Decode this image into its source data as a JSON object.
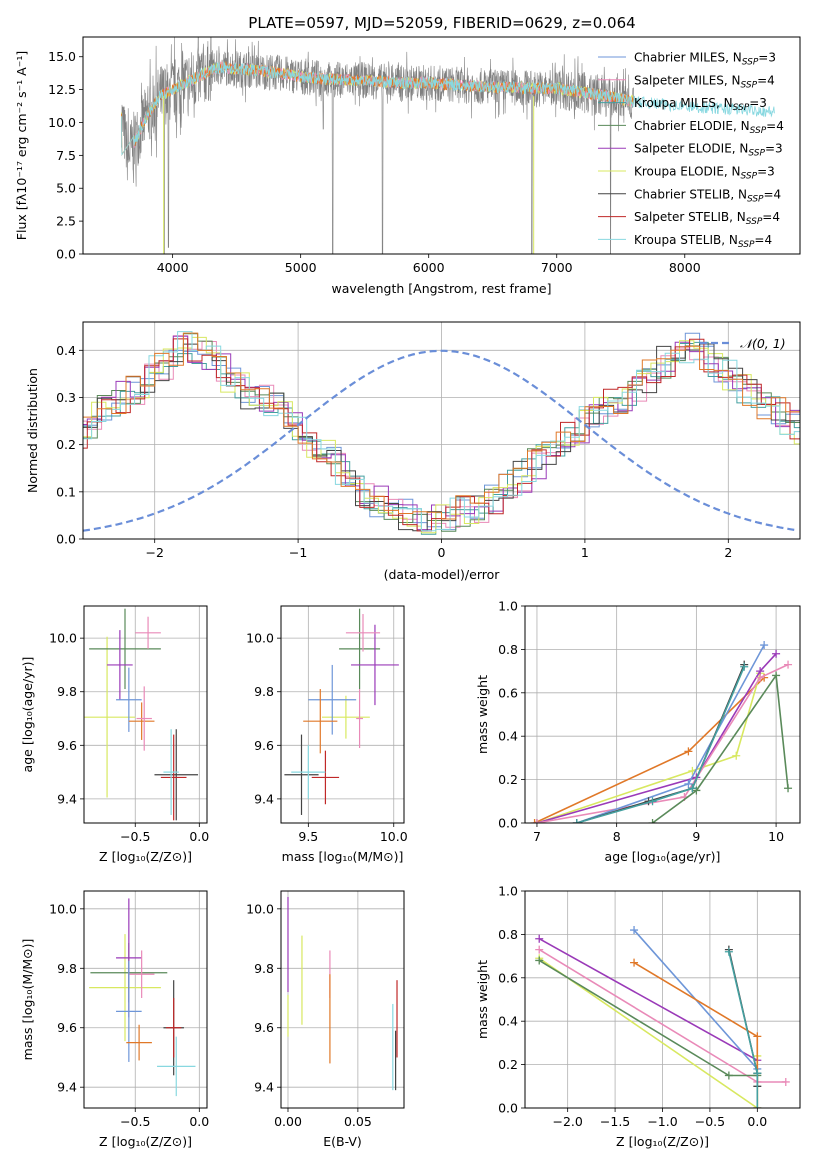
{
  "figure_title": "PLATE=0597, MJD=52059, FIBERID=0629, z=0.064",
  "colors": {
    "Chabrier MILES": "#6e96d8",
    "Salpeter MILES": "#e98ab8",
    "Kroupa MILES": "#44a0a0",
    "Chabrier ELODIE": "#5a8a5a",
    "Salpeter ELODIE": "#9a3ab8",
    "Kroupa ELODIE": "#d8e860",
    "Chabrier STELIB": "#444444",
    "Salpeter STELIB": "#c02828",
    "Kroupa STELIB": "#88d8e0",
    "orange": "#e07828",
    "data": "#808080",
    "model": "#78d8d8",
    "normal": "#6a8ed8"
  },
  "chart_data": [
    {
      "id": "spectrum",
      "type": "line",
      "title": "PLATE=0597, MJD=52059, FIBERID=0629, z=0.064",
      "xlabel": "wavelength [Angstrom, rest frame]",
      "ylabel": "Flux [fλ10⁻¹⁷ erg cm⁻² s⁻¹ A⁻¹]",
      "xlim": [
        3300,
        8900
      ],
      "ylim": [
        0,
        16.5
      ],
      "xticks": [
        "4000",
        "5000",
        "6000",
        "7000",
        "8000"
      ],
      "yticks": [
        "0.0",
        "2.5",
        "5.0",
        "7.5",
        "10.0",
        "12.5",
        "15.0"
      ],
      "grid": false,
      "legend_position": "top-right",
      "legend": [
        "Chabrier MILES, N_SSP=3",
        "Salpeter MILES, N_SSP=4",
        "Kroupa MILES, N_SSP=3",
        "Chabrier ELODIE, N_SSP=4",
        "Salpeter ELODIE, N_SSP=3",
        "Kroupa ELODIE, N_SSP=3",
        "Chabrier STELIB, N_SSP=4",
        "Salpeter STELIB, N_SSP=4",
        "Kroupa STELIB, N_SSP=4"
      ],
      "envelope": {
        "x": [
          3600,
          3650,
          3700,
          3800,
          3900,
          4000,
          4100,
          4200,
          4300,
          4400,
          4600,
          4800,
          5000,
          5200,
          5500,
          5800,
          6000,
          6300,
          6500,
          6800,
          7000,
          7200,
          7400,
          7600,
          7800,
          8000,
          8200,
          8400,
          8600,
          8700
        ],
        "y": [
          10.5,
          7.5,
          8.5,
          10.5,
          12.0,
          12.5,
          13.0,
          13.5,
          14.0,
          14.2,
          14.0,
          13.8,
          13.5,
          13.3,
          13.2,
          13.0,
          13.0,
          12.8,
          12.7,
          12.6,
          12.6,
          12.3,
          12.0,
          11.6,
          11.4,
          11.2,
          11.1,
          11.0,
          10.9,
          10.8
        ]
      },
      "absorption_lines": [
        {
          "x": 3934,
          "depth": 0.0
        },
        {
          "x": 3968,
          "depth": 0.5
        },
        {
          "x": 5176,
          "depth": 9.5
        },
        {
          "x": 5250,
          "depth": 0.0
        },
        {
          "x": 5640,
          "depth": 0.0
        },
        {
          "x": 6805,
          "depth": 0.0
        },
        {
          "x": 7420,
          "depth": 0.0
        }
      ]
    },
    {
      "id": "residuals",
      "type": "bar",
      "xlabel": "(data-model)/error",
      "ylabel": "Normed distribution",
      "xlim": [
        -2.5,
        2.5
      ],
      "ylim": [
        0,
        0.46
      ],
      "xticks": [
        "−2",
        "−1",
        "0",
        "1",
        "2"
      ],
      "yticks": [
        "0.0",
        "0.1",
        "0.2",
        "0.3",
        "0.4"
      ],
      "grid": true,
      "legend_position": "top-right",
      "legend": [
        "𝒩(0, 1)"
      ],
      "bin_width": 0.1,
      "base": [
        0.03,
        0.035,
        0.04,
        0.045,
        0.05,
        0.055,
        0.06,
        0.07,
        0.08,
        0.09,
        0.1,
        0.115,
        0.13,
        0.145,
        0.16,
        0.175,
        0.19,
        0.205,
        0.22,
        0.235,
        0.25,
        0.265,
        0.28,
        0.29,
        0.295,
        0.3,
        0.31,
        0.32,
        0.33,
        0.345,
        0.36,
        0.375,
        0.39,
        0.4,
        0.405,
        0.41,
        0.4,
        0.385,
        0.37,
        0.36,
        0.345,
        0.33,
        0.32,
        0.31,
        0.3,
        0.29,
        0.28,
        0.27,
        0.255,
        0.24,
        0.225,
        0.21,
        0.195,
        0.18,
        0.165,
        0.15,
        0.135,
        0.12,
        0.105,
        0.09,
        0.078,
        0.068,
        0.06,
        0.052,
        0.045,
        0.04,
        0.035,
        0.03,
        0.028,
        0.025,
        0.022,
        0.02,
        0.018,
        0.016,
        0.015,
        0.014,
        0.013,
        0.012,
        0.011,
        0.01,
        0.009,
        0.009,
        0.008,
        0.008,
        0.008,
        0.007,
        0.007,
        0.007,
        0.006,
        0.006,
        0.006,
        0.006,
        0.005,
        0.005,
        0.005,
        0.005,
        0.005,
        0.005,
        0.005,
        0.005
      ]
    },
    {
      "id": "age-vs-Z",
      "type": "scatter",
      "xlabel": "Z [log₁₀(Z/Z⊙)]",
      "ylabel": "age  [log₁₀(age/yr)]",
      "xlim": [
        -0.9,
        0.06
      ],
      "ylim": [
        9.31,
        10.12
      ],
      "xticks": [
        "−0.5",
        "0.0"
      ],
      "yticks": [
        "9.4",
        "9.6",
        "9.8",
        "10.0"
      ],
      "grid": true,
      "points": [
        {
          "model": "Kroupa ELODIE",
          "x": -0.72,
          "y": 9.705,
          "xerr": 0.22,
          "yerr": 0.3
        },
        {
          "model": "Chabrier ELODIE",
          "x": -0.58,
          "y": 9.96,
          "xerr": 0.28,
          "yerr": 0.15
        },
        {
          "model": "Salpeter ELODIE",
          "x": -0.62,
          "y": 9.9,
          "xerr": 0.1,
          "yerr": 0.13
        },
        {
          "model": "Chabrier MILES",
          "x": -0.55,
          "y": 9.77,
          "xerr": 0.1,
          "yerr": 0.12
        },
        {
          "model": "Salpeter MILES",
          "x": -0.4,
          "y": 10.02,
          "xerr": 0.1,
          "yerr": 0.06
        },
        {
          "model": "orange",
          "x": -0.45,
          "y": 9.69,
          "xerr": 0.1,
          "yerr": 0.07
        },
        {
          "model": "Salpeter MILES",
          "x": -0.43,
          "y": 9.7,
          "xerr": 0.06,
          "yerr": 0.12
        },
        {
          "model": "Chabrier STELIB",
          "x": -0.18,
          "y": 9.49,
          "xerr": 0.17,
          "yerr": 0.17
        },
        {
          "model": "Salpeter STELIB",
          "x": -0.2,
          "y": 9.48,
          "xerr": 0.1,
          "yerr": 0.16
        },
        {
          "model": "Kroupa STELIB",
          "x": -0.22,
          "y": 9.5,
          "xerr": 0.06,
          "yerr": 0.16
        }
      ]
    },
    {
      "id": "age-vs-mass",
      "type": "scatter",
      "xlabel": "mass [log₁₀(M/M⊙)]",
      "ylabel": "",
      "xlim": [
        9.34,
        10.06
      ],
      "ylim": [
        9.31,
        10.12
      ],
      "xticks": [
        "9.5",
        "10.0"
      ],
      "yticks": [
        "9.4",
        "9.6",
        "9.8",
        "10.0"
      ],
      "grid": true,
      "points": [
        {
          "model": "Kroupa ELODIE",
          "x": 9.72,
          "y": 9.705,
          "xerr": 0.14,
          "yerr": 0.08
        },
        {
          "model": "Chabrier ELODIE",
          "x": 9.8,
          "y": 9.96,
          "xerr": 0.12,
          "yerr": 0.15
        },
        {
          "model": "Salpeter ELODIE",
          "x": 9.89,
          "y": 9.9,
          "xerr": 0.14,
          "yerr": 0.15
        },
        {
          "model": "Chabrier MILES",
          "x": 9.64,
          "y": 9.77,
          "xerr": 0.14,
          "yerr": 0.13
        },
        {
          "model": "Salpeter MILES",
          "x": 9.82,
          "y": 10.02,
          "xerr": 0.1,
          "yerr": 0.07
        },
        {
          "model": "orange",
          "x": 9.57,
          "y": 9.69,
          "xerr": 0.1,
          "yerr": 0.12
        },
        {
          "model": "Salpeter MILES",
          "x": 9.8,
          "y": 9.7,
          "xerr": 0.02,
          "yerr": 0.11
        },
        {
          "model": "Chabrier STELIB",
          "x": 9.46,
          "y": 9.49,
          "xerr": 0.1,
          "yerr": 0.15
        },
        {
          "model": "Salpeter STELIB",
          "x": 9.6,
          "y": 9.48,
          "xerr": 0.08,
          "yerr": 0.1
        },
        {
          "model": "Kroupa STELIB",
          "x": 9.5,
          "y": 9.5,
          "xerr": 0.1,
          "yerr": 0.1
        }
      ]
    },
    {
      "id": "weight-vs-age",
      "type": "line",
      "xlabel": "age  [log₁₀(age/yr)]",
      "ylabel": "mass weight",
      "xlim": [
        6.85,
        10.3
      ],
      "ylim": [
        0,
        1.0
      ],
      "xticks": [
        "7",
        "8",
        "9",
        "10"
      ],
      "yticks": [
        "0.0",
        "0.2",
        "0.4",
        "0.6",
        "0.8",
        "1.0"
      ],
      "grid": true,
      "series": [
        {
          "model": "orange",
          "x": [
            6.97,
            8.9,
            9.85
          ],
          "y": [
            0.0,
            0.33,
            0.67
          ]
        },
        {
          "model": "Kroupa ELODIE",
          "x": [
            7.0,
            8.95,
            9.5,
            9.8
          ],
          "y": [
            0.0,
            0.24,
            0.31,
            0.69
          ]
        },
        {
          "model": "Salpeter ELODIE",
          "x": [
            7.0,
            9.0,
            9.8,
            10.0
          ],
          "y": [
            0.0,
            0.21,
            0.7,
            0.78
          ]
        },
        {
          "model": "Salpeter MILES",
          "x": [
            7.0,
            8.85,
            9.8,
            10.15
          ],
          "y": [
            0.0,
            0.12,
            0.67,
            0.73
          ]
        },
        {
          "model": "Chabrier MILES",
          "x": [
            7.5,
            8.9,
            9.85
          ],
          "y": [
            0.0,
            0.18,
            0.82
          ]
        },
        {
          "model": "Chabrier STELIB",
          "x": [
            7.5,
            8.4,
            8.95,
            9.6
          ],
          "y": [
            0.0,
            0.1,
            0.16,
            0.73
          ]
        },
        {
          "model": "Chabrier ELODIE",
          "x": [
            8.45,
            9.0,
            10.0,
            10.15
          ],
          "y": [
            0.0,
            0.15,
            0.68,
            0.16
          ]
        },
        {
          "model": "Kroupa MILES",
          "x": [
            7.5,
            8.45,
            8.95,
            9.6
          ],
          "y": [
            0.0,
            0.1,
            0.16,
            0.72
          ]
        }
      ]
    },
    {
      "id": "mass-vs-Z",
      "type": "scatter",
      "xlabel": "Z [log₁₀(Z/Z⊙)]",
      "ylabel": "mass [log₁₀(M/M⊙)]",
      "xlim": [
        -0.9,
        0.06
      ],
      "ylim": [
        9.33,
        10.06
      ],
      "xticks": [
        "−0.5",
        "0.0"
      ],
      "yticks": [
        "9.4",
        "9.6",
        "9.8",
        "10.0"
      ],
      "grid": true,
      "points": [
        {
          "model": "Kroupa ELODIE",
          "x": -0.58,
          "y": 9.735,
          "xerr": 0.28,
          "yerr": 0.18
        },
        {
          "model": "Chabrier ELODIE",
          "x": -0.55,
          "y": 9.785,
          "xerr": 0.3,
          "yerr": 0.1
        },
        {
          "model": "Salpeter ELODIE",
          "x": -0.55,
          "y": 9.835,
          "xerr": 0.1,
          "yerr": 0.2
        },
        {
          "model": "Salpeter MILES",
          "x": -0.45,
          "y": 9.78,
          "xerr": 0.1,
          "yerr": 0.08
        },
        {
          "model": "Chabrier MILES",
          "x": -0.55,
          "y": 9.655,
          "xerr": 0.1,
          "yerr": 0.17
        },
        {
          "model": "orange",
          "x": -0.47,
          "y": 9.55,
          "xerr": 0.1,
          "yerr": 0.06
        },
        {
          "model": "Chabrier STELIB",
          "x": -0.2,
          "y": 9.6,
          "xerr": 0.08,
          "yerr": 0.16
        },
        {
          "model": "Salpeter STELIB",
          "x": -0.2,
          "y": 9.6,
          "xerr": 0.06,
          "yerr": 0.1
        },
        {
          "model": "Kroupa STELIB",
          "x": -0.18,
          "y": 9.47,
          "xerr": 0.15,
          "yerr": 0.1
        }
      ]
    },
    {
      "id": "mass-vs-ebv",
      "type": "scatter",
      "xlabel": "E(B-V)",
      "ylabel": "",
      "xlim": [
        -0.005,
        0.083
      ],
      "ylim": [
        9.33,
        10.06
      ],
      "xticks": [
        "0.00",
        "0.05"
      ],
      "yticks": [
        "9.4",
        "9.6",
        "9.8",
        "10.0"
      ],
      "grid": true,
      "points": [
        {
          "model": "Salpeter ELODIE",
          "x": 0.0,
          "y": 9.88,
          "xerr": 0,
          "yerr": 0.16
        },
        {
          "model": "Kroupa ELODIE",
          "x": 0.0,
          "y": 9.64,
          "xerr": 0,
          "yerr": 0.07
        },
        {
          "model": "Kroupa ELODIE",
          "x": 0.01,
          "y": 9.76,
          "xerr": 0,
          "yerr": 0.15
        },
        {
          "model": "Salpeter MILES",
          "x": 0.03,
          "y": 9.78,
          "xerr": 0,
          "yerr": 0.08
        },
        {
          "model": "orange",
          "x": 0.03,
          "y": 9.63,
          "xerr": 0,
          "yerr": 0.15
        },
        {
          "model": "Kroupa STELIB",
          "x": 0.075,
          "y": 9.535,
          "xerr": 0,
          "yerr": 0.145
        },
        {
          "model": "Chabrier STELIB",
          "x": 0.077,
          "y": 9.49,
          "xerr": 0,
          "yerr": 0.1
        },
        {
          "model": "Salpeter STELIB",
          "x": 0.078,
          "y": 9.63,
          "xerr": 0,
          "yerr": 0.13
        }
      ]
    },
    {
      "id": "weight-vs-Z",
      "type": "line",
      "xlabel": "Z [log₁₀(Z/Z⊙)]",
      "ylabel": "mass weight",
      "xlim": [
        -2.45,
        0.45
      ],
      "ylim": [
        0,
        1.0
      ],
      "xticks": [
        "−2.0",
        "−1.5",
        "−1.0",
        "−0.5",
        "0.0"
      ],
      "yticks": [
        "0.0",
        "0.2",
        "0.4",
        "0.6",
        "0.8",
        "1.0"
      ],
      "grid": true,
      "series": [
        {
          "model": "Salpeter ELODIE",
          "x": [
            -2.3,
            0.0
          ],
          "y": [
            0.78,
            0.22
          ]
        },
        {
          "model": "Salpeter MILES",
          "x": [
            -2.3,
            0.0,
            0.3
          ],
          "y": [
            0.73,
            0.12,
            0.12
          ]
        },
        {
          "model": "Kroupa ELODIE",
          "x": [
            -2.3,
            0.0,
            0.0
          ],
          "y": [
            0.69,
            0.0,
            0.24
          ]
        },
        {
          "model": "Chabrier ELODIE",
          "x": [
            -2.3,
            -0.3,
            0.0
          ],
          "y": [
            0.68,
            0.15,
            0.15
          ]
        },
        {
          "model": "Chabrier MILES",
          "x": [
            -1.3,
            0.0
          ],
          "y": [
            0.82,
            0.18
          ]
        },
        {
          "model": "orange",
          "x": [
            -1.3,
            0.0,
            0.0
          ],
          "y": [
            0.67,
            0.33,
            0.0
          ]
        },
        {
          "model": "Chabrier STELIB",
          "x": [
            -0.3,
            0.0,
            0.0
          ],
          "y": [
            0.73,
            0.16,
            0.1
          ]
        },
        {
          "model": "Kroupa MILES",
          "x": [
            -0.3,
            0.0,
            0.0
          ],
          "y": [
            0.72,
            0.16,
            0.0
          ]
        }
      ]
    }
  ]
}
